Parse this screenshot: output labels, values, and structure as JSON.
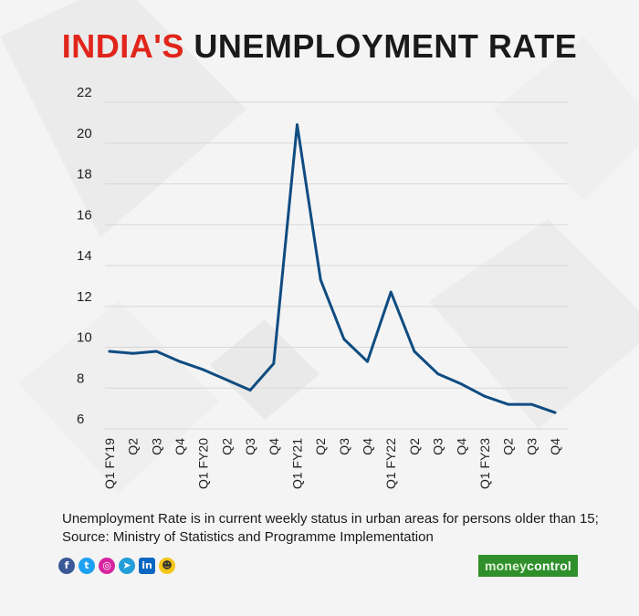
{
  "title": {
    "part1": "INDIA'S",
    "part2": "UNEMPLOYMENT RATE"
  },
  "note": "Unemployment Rate is in current weekly status in urban areas for persons older than 15; Source: Ministry of Statistics and Programme Implementation",
  "social_icons": [
    "facebook-icon",
    "twitter-icon",
    "instagram-icon",
    "telegram-icon",
    "linkedin-icon",
    "snapchat-icon"
  ],
  "brand": {
    "part1": "money",
    "part2": "control"
  },
  "colors": {
    "title_red": "#e1251b",
    "line": "#0f4c81",
    "brand_green": "#2f8f2a"
  },
  "chart_data": {
    "type": "line",
    "categories": [
      "Q1 FY19",
      "Q2",
      "Q3",
      "Q4",
      "Q1 FY20",
      "Q2",
      "Q3",
      "Q4",
      "Q1 FY21",
      "Q2",
      "Q3",
      "Q4",
      "Q1 FY22",
      "Q2",
      "Q3",
      "Q4",
      "Q1 FY23",
      "Q2",
      "Q3",
      "Q4"
    ],
    "series": [
      {
        "values": [
          9.8,
          9.7,
          9.8,
          9.3,
          8.9,
          8.4,
          7.9,
          9.2,
          20.9,
          13.3,
          10.4,
          9.3,
          12.7,
          9.8,
          8.7,
          8.2,
          7.6,
          7.2,
          7.2,
          6.8
        ]
      }
    ],
    "ylim": [
      6,
      22
    ],
    "yticks": [
      6,
      8,
      10,
      12,
      14,
      16,
      18,
      20,
      22
    ],
    "grid": true
  }
}
